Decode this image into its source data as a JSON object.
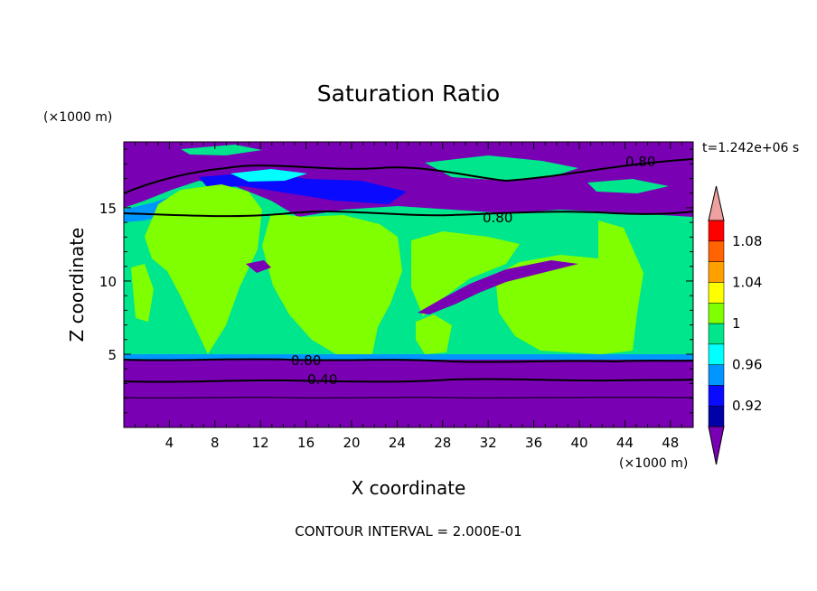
{
  "chart_data": {
    "type": "heatmap",
    "title": "Saturation Ratio",
    "xlabel": "X coordinate",
    "ylabel": "Z coordinate",
    "x_unit": "(×1000 m)",
    "y_unit": "(×1000 m)",
    "time_label": "t=1.242e+06 s",
    "footer": "CONTOUR INTERVAL = 2.000E-01",
    "xlim": [
      0,
      50
    ],
    "ylim": [
      0,
      19.5
    ],
    "x_ticks": [
      "4",
      "8",
      "12",
      "16",
      "20",
      "24",
      "28",
      "32",
      "36",
      "40",
      "44",
      "48"
    ],
    "y_ticks": [
      "5",
      "10",
      "15"
    ],
    "colorbar": {
      "levels": [
        0.9,
        0.92,
        0.94,
        0.96,
        0.98,
        1.0,
        1.02,
        1.04,
        1.06,
        1.08,
        1.1
      ],
      "labels": [
        "0.92",
        "0.96",
        "1",
        "1.04",
        "1.08"
      ],
      "colors": [
        "#7a00b4",
        "#0000a8",
        "#0a0aff",
        "#0096ff",
        "#00ffff",
        "#00e68c",
        "#80ff00",
        "#ffff00",
        "#ffa000",
        "#ff6400",
        "#ff0000",
        "#f0a0a0"
      ],
      "extend": "both"
    },
    "contour_labels": [
      "0.80",
      "0.80",
      "0.80",
      "0.40"
    ]
  }
}
